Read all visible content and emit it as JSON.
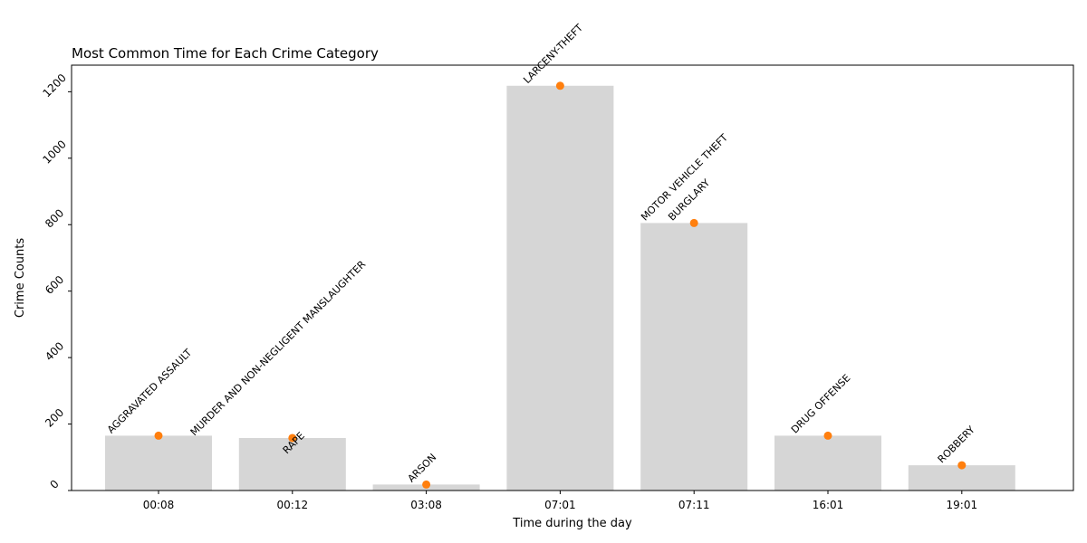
{
  "chart_data": {
    "type": "bar",
    "title": "Most Common Time for Each Crime Category",
    "xlabel": "Time during the day",
    "ylabel": "Crime Counts",
    "ylim": [
      0,
      1280
    ],
    "yticks": [
      0,
      200,
      400,
      600,
      800,
      1000,
      1200
    ],
    "categories": [
      "00:08",
      "00:12",
      "03:08",
      "07:01",
      "07:11",
      "16:01",
      "19:01"
    ],
    "values": [
      165,
      158,
      18,
      1218,
      805,
      165,
      76
    ],
    "bar_color": "#d6d6d6",
    "marker_color": "#ff7f0e",
    "grid": false,
    "annotations": [
      {
        "text": "AGGRAVATED ASSAULT",
        "category": "00:08",
        "value": 165
      },
      {
        "text": "MURDER AND NON-NEGLIGENT MANSLAUGHTER",
        "category": "00:12",
        "value": 158
      },
      {
        "text": "RAPE",
        "category": "00:12",
        "value": 158
      },
      {
        "text": "ARSON",
        "category": "03:08",
        "value": 18
      },
      {
        "text": "LARCENY-THEFT",
        "category": "07:01",
        "value": 1218
      },
      {
        "text": "MOTOR VEHICLE THEFT",
        "category": "07:11",
        "value": 805
      },
      {
        "text": "BURGLARY",
        "category": "07:11",
        "value": 805
      },
      {
        "text": "DRUG OFFENSE",
        "category": "16:01",
        "value": 165
      },
      {
        "text": "ROBBERY",
        "category": "19:01",
        "value": 76
      }
    ]
  }
}
